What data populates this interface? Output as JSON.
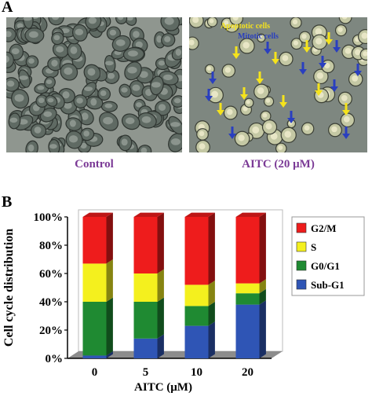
{
  "panels": {
    "a": {
      "letter": "A"
    },
    "b": {
      "letter": "B"
    }
  },
  "micrographs": {
    "left_caption": "Control",
    "right_caption": "AITC (20 μM)",
    "legend_apoptotic": "Apoptotic cells",
    "legend_mitotic": "Mitotic cells",
    "colors": {
      "apoptotic": "#f5e31c",
      "mitotic": "#2a3fbf",
      "caption": "#7b3a96"
    }
  },
  "chart_data": {
    "type": "bar",
    "stacked": true,
    "style": "3d",
    "categories": [
      "0",
      "5",
      "10",
      "20"
    ],
    "xlabel": "AITC (μM)",
    "ylabel": "Cell cycle distribution",
    "ylim": [
      0,
      100
    ],
    "yticks": [
      "0%",
      "20%",
      "40%",
      "60%",
      "80%",
      "100%"
    ],
    "grid": false,
    "legend_position": "right",
    "series": [
      {
        "name": "Sub-G1",
        "color": "#2f55b5",
        "values": [
          2,
          14,
          23,
          38
        ]
      },
      {
        "name": "G0/G1",
        "color": "#1f8a32",
        "values": [
          38,
          26,
          14,
          8
        ]
      },
      {
        "name": "S",
        "color": "#f4f01e",
        "values": [
          27,
          20,
          15,
          7
        ]
      },
      {
        "name": "G2/M",
        "color": "#ee1c1c",
        "values": [
          33,
          40,
          48,
          47
        ]
      }
    ]
  }
}
